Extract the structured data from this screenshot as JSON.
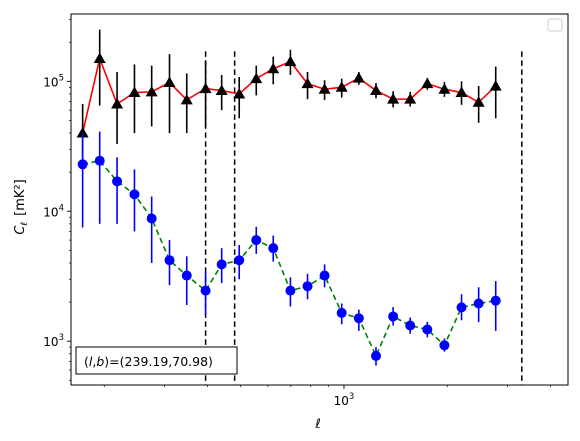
{
  "chart_data": {
    "type": "scatter",
    "xlabel": "ℓ",
    "ylabel_main": "C",
    "ylabel_sub": "ℓ",
    "ylabel_unit": "[mK²]",
    "xscale": "log",
    "yscale": "log",
    "xlim": [
      160,
      4500
    ],
    "ylim": [
      460,
      330000
    ],
    "x_ticks": [
      {
        "value": 1000,
        "base": "10",
        "exp": "3"
      }
    ],
    "y_ticks": [
      {
        "value": 1000,
        "base": "10",
        "exp": "3"
      },
      {
        "value": 10000,
        "base": "10",
        "exp": "4"
      },
      {
        "value": 100000,
        "base": "10",
        "exp": "5"
      }
    ],
    "vlines": [
      395,
      480,
      3300
    ],
    "legend": {
      "position": "top-right",
      "entries": []
    },
    "annotation": {
      "position": "bottom-left",
      "text": "(l,b)=(239.19,70.98)",
      "label_l": "l",
      "label_b": "b",
      "values": "(239.19,70.98)"
    },
    "series": [
      {
        "color": "#ff0000",
        "marker": "triangle",
        "marker_color": "#000000",
        "error_color": "#000000",
        "linestyle": "solid",
        "points": [
          {
            "x": 173,
            "y": 40000,
            "lo": 21000,
            "hi": 67000
          },
          {
            "x": 194,
            "y": 150000,
            "lo": 65000,
            "hi": 250000
          },
          {
            "x": 218,
            "y": 67000,
            "lo": 33000,
            "hi": 118000
          },
          {
            "x": 245,
            "y": 82000,
            "lo": 40000,
            "hi": 135000
          },
          {
            "x": 275,
            "y": 83000,
            "lo": 45000,
            "hi": 132000
          },
          {
            "x": 310,
            "y": 98000,
            "lo": 40000,
            "hi": 162000
          },
          {
            "x": 348,
            "y": 72000,
            "lo": 40000,
            "hi": 115000
          },
          {
            "x": 395,
            "y": 88000,
            "lo": 45000,
            "hi": 145000
          },
          {
            "x": 440,
            "y": 85000,
            "lo": 60000,
            "hi": 112000
          },
          {
            "x": 495,
            "y": 80000,
            "lo": 52000,
            "hi": 108000
          },
          {
            "x": 555,
            "y": 105000,
            "lo": 78000,
            "hi": 132000
          },
          {
            "x": 622,
            "y": 125000,
            "lo": 95000,
            "hi": 155000
          },
          {
            "x": 698,
            "y": 142000,
            "lo": 112000,
            "hi": 175000
          },
          {
            "x": 783,
            "y": 96000,
            "lo": 73000,
            "hi": 118000
          },
          {
            "x": 878,
            "y": 87000,
            "lo": 72000,
            "hi": 102000
          },
          {
            "x": 985,
            "y": 90000,
            "lo": 75000,
            "hi": 105000
          },
          {
            "x": 1105,
            "y": 106000,
            "lo": 94000,
            "hi": 118000
          },
          {
            "x": 1240,
            "y": 85000,
            "lo": 74000,
            "hi": 97000
          },
          {
            "x": 1391,
            "y": 73000,
            "lo": 63000,
            "hi": 84000
          },
          {
            "x": 1560,
            "y": 73000,
            "lo": 64000,
            "hi": 83000
          },
          {
            "x": 1750,
            "y": 96000,
            "lo": 86000,
            "hi": 106000
          },
          {
            "x": 1963,
            "y": 87000,
            "lo": 76000,
            "hi": 99000
          },
          {
            "x": 2202,
            "y": 82000,
            "lo": 66000,
            "hi": 100000
          },
          {
            "x": 2470,
            "y": 69000,
            "lo": 48000,
            "hi": 92000
          },
          {
            "x": 2770,
            "y": 92000,
            "lo": 52000,
            "hi": 130000
          }
        ]
      },
      {
        "color": "#008000",
        "marker": "circle",
        "marker_color": "#0000ff",
        "error_color": "#0000ff",
        "linestyle": "dashed",
        "points": [
          {
            "x": 173,
            "y": 23000,
            "lo": 7500,
            "hi": 40000
          },
          {
            "x": 194,
            "y": 24500,
            "lo": 8000,
            "hi": 41000
          },
          {
            "x": 218,
            "y": 17000,
            "lo": 8000,
            "hi": 26000
          },
          {
            "x": 245,
            "y": 13500,
            "lo": 7000,
            "hi": 21000
          },
          {
            "x": 275,
            "y": 8800,
            "lo": 4000,
            "hi": 13000
          },
          {
            "x": 310,
            "y": 4200,
            "lo": 2700,
            "hi": 6000
          },
          {
            "x": 348,
            "y": 3200,
            "lo": 1900,
            "hi": 4500
          },
          {
            "x": 395,
            "y": 2450,
            "lo": 1600,
            "hi": 3400
          },
          {
            "x": 440,
            "y": 3900,
            "lo": 2800,
            "hi": 5200
          },
          {
            "x": 495,
            "y": 4200,
            "lo": 3000,
            "hi": 5500
          },
          {
            "x": 555,
            "y": 6000,
            "lo": 4700,
            "hi": 7600
          },
          {
            "x": 622,
            "y": 5200,
            "lo": 4100,
            "hi": 6500
          },
          {
            "x": 698,
            "y": 2450,
            "lo": 1850,
            "hi": 3100
          },
          {
            "x": 783,
            "y": 2650,
            "lo": 2100,
            "hi": 3300
          },
          {
            "x": 878,
            "y": 3200,
            "lo": 2600,
            "hi": 3900
          },
          {
            "x": 985,
            "y": 1650,
            "lo": 1350,
            "hi": 1950
          },
          {
            "x": 1105,
            "y": 1500,
            "lo": 1200,
            "hi": 1750
          },
          {
            "x": 1240,
            "y": 770,
            "lo": 650,
            "hi": 900
          },
          {
            "x": 1391,
            "y": 1550,
            "lo": 1320,
            "hi": 1830
          },
          {
            "x": 1560,
            "y": 1320,
            "lo": 1140,
            "hi": 1520
          },
          {
            "x": 1750,
            "y": 1230,
            "lo": 1070,
            "hi": 1410
          },
          {
            "x": 1963,
            "y": 930,
            "lo": 830,
            "hi": 1050
          },
          {
            "x": 2202,
            "y": 1820,
            "lo": 1450,
            "hi": 2300
          },
          {
            "x": 2470,
            "y": 1950,
            "lo": 1400,
            "hi": 2600
          },
          {
            "x": 2770,
            "y": 2050,
            "lo": 1200,
            "hi": 2900
          }
        ]
      }
    ]
  }
}
